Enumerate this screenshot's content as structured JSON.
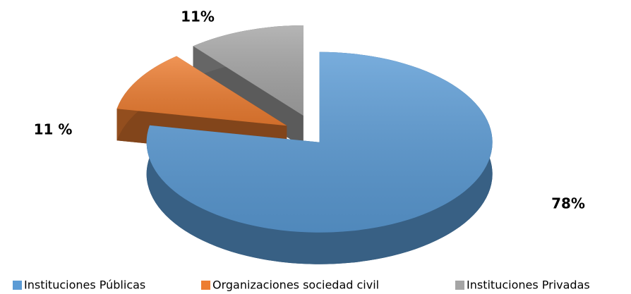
{
  "chart_data": {
    "type": "pie",
    "categories": [
      "Instituciones Públicas",
      "Organizaciones sociedad civil",
      "Instituciones Privadas"
    ],
    "values": [
      78,
      11,
      11
    ],
    "value_labels": [
      "78%",
      "11 %",
      "11%"
    ],
    "colors": [
      "#5b9bd5",
      "#ed7d31",
      "#a5a5a5"
    ]
  }
}
